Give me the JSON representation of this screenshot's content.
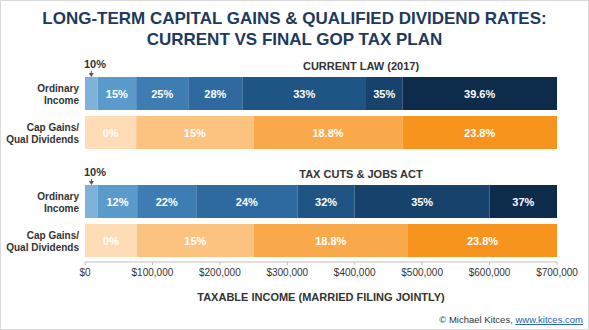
{
  "chart_data": {
    "type": "bar",
    "orientation": "horizontal",
    "stacked": true,
    "data_labels": true,
    "grid": false,
    "title": "LONG-TERM CAPITAL GAINS & QUALIFIED DIVIDEND RATES:",
    "subtitle": "CURRENT VS FINAL GOP TAX PLAN",
    "x_label": "TAXABLE INCOME (MARRIED FILING JOINTLY)",
    "xlim": [
      0,
      700000
    ],
    "xticks": [
      {
        "value": 0,
        "label": "$0"
      },
      {
        "value": 100000,
        "label": "$100,000"
      },
      {
        "value": 200000,
        "label": "$200,000"
      },
      {
        "value": 300000,
        "label": "$300,000"
      },
      {
        "value": 400000,
        "label": "$400,000"
      },
      {
        "value": 500000,
        "label": "$500,000"
      },
      {
        "value": 600000,
        "label": "$600,000"
      },
      {
        "value": 700000,
        "label": "$700,000"
      }
    ],
    "groups": [
      {
        "title": "CURRENT LAW (2017)",
        "bars": [
          {
            "category": [
              "Ordinary",
              "Income"
            ],
            "annotation": "10%",
            "values": [
              18650,
              57250,
              77200,
              80250,
              183350,
              54000,
              229300
            ],
            "labels": [
              null,
              "15%",
              "25%",
              "28%",
              "33%",
              "35%",
              "39.6%"
            ],
            "colors": [
              "#7fb2d8",
              "#5a9bcb",
              "#3d7db4",
              "#2e6aa0",
              "#1f5585",
              "#17426c",
              "#0d2b4b"
            ]
          },
          {
            "category": [
              "Cap Gains/",
              "Qual Dividends"
            ],
            "values": [
              75900,
              174100,
              220700,
              229300
            ],
            "labels": [
              "0%",
              "15%",
              "18.8%",
              "23.8%"
            ],
            "colors": [
              "#fddcb6",
              "#fcc27f",
              "#faa94a",
              "#f7941d"
            ]
          }
        ]
      },
      {
        "title": "TAX CUTS & JOBS ACT",
        "bars": [
          {
            "category": [
              "Ordinary",
              "Income"
            ],
            "annotation": "10%",
            "values": [
              19050,
              58350,
              87600,
              150000,
              85000,
              200000,
              100000
            ],
            "labels": [
              null,
              "12%",
              "22%",
              "24%",
              "32%",
              "35%",
              "37%"
            ],
            "colors": [
              "#7fb2d8",
              "#5a9bcb",
              "#3d7db4",
              "#2e6aa0",
              "#1f5585",
              "#17426c",
              "#0d2b4b"
            ]
          },
          {
            "category": [
              "Cap Gains/",
              "Qual Dividends"
            ],
            "values": [
              77200,
              172800,
              229000,
              221000
            ],
            "labels": [
              "0%",
              "15%",
              "18.8%",
              "23.8%"
            ],
            "colors": [
              "#fddcb6",
              "#fcc27f",
              "#faa94a",
              "#f7941d"
            ]
          }
        ]
      }
    ],
    "credit": [
      "© Michael Kitces, ",
      "www.kitces.com"
    ]
  }
}
